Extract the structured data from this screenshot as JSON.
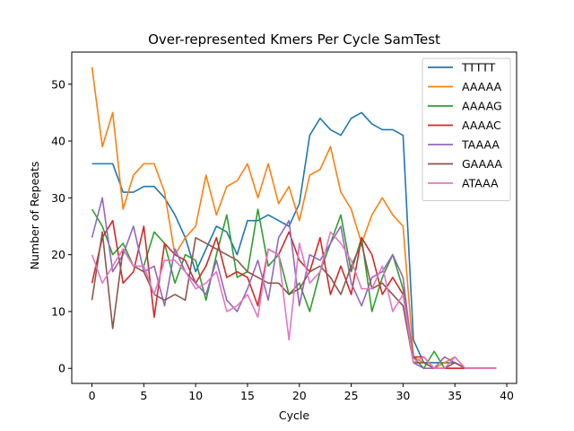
{
  "chart_data": {
    "type": "line",
    "title": "Over-represented Kmers Per Cycle SamTest",
    "xlabel": "Cycle",
    "ylabel": "Number of Repeats",
    "xlim": [
      -1.95,
      40.95
    ],
    "ylim": [
      -2.65,
      55.65
    ],
    "xticks": [
      0,
      5,
      10,
      15,
      20,
      25,
      30,
      35,
      40
    ],
    "yticks": [
      0,
      10,
      20,
      30,
      40,
      50
    ],
    "grid": false,
    "legend_position": "upper right",
    "x": [
      0,
      1,
      2,
      3,
      4,
      5,
      6,
      7,
      8,
      9,
      10,
      11,
      12,
      13,
      14,
      15,
      16,
      17,
      18,
      19,
      20,
      21,
      22,
      23,
      24,
      25,
      26,
      27,
      28,
      29,
      30,
      31,
      32,
      33,
      34,
      35,
      36,
      37,
      38,
      39
    ],
    "series": [
      {
        "name": "TTTTT",
        "color": "#1f77b4",
        "values": [
          36,
          36,
          36,
          31,
          31,
          32,
          32,
          30,
          27,
          23,
          17,
          21,
          25,
          24,
          20,
          26,
          26,
          27,
          26,
          25,
          29,
          41,
          44,
          42,
          41,
          44,
          45,
          43,
          42,
          42,
          41,
          5,
          1,
          1,
          1,
          1,
          0,
          0,
          0,
          0
        ]
      },
      {
        "name": "AAAAA",
        "color": "#ff7f0e",
        "values": [
          53,
          39,
          45,
          28,
          34,
          36,
          36,
          31,
          20,
          23,
          25,
          34,
          27,
          32,
          33,
          36,
          30,
          36,
          29,
          32,
          26,
          34,
          35,
          39,
          31,
          28,
          22,
          27,
          30,
          27,
          25,
          2,
          1,
          0,
          1,
          2,
          0,
          0,
          0,
          0
        ]
      },
      {
        "name": "AAAAG",
        "color": "#2ca02c",
        "values": [
          28,
          25,
          20,
          22,
          18,
          18,
          24,
          22,
          15,
          20,
          19,
          12,
          20,
          27,
          16,
          17,
          28,
          18,
          20,
          13,
          15,
          10,
          17,
          22,
          27,
          17,
          23,
          10,
          16,
          20,
          14,
          2,
          0,
          3,
          0,
          0,
          0,
          0,
          0,
          0
        ]
      },
      {
        "name": "AAAAC",
        "color": "#d62728",
        "values": [
          15,
          23,
          26,
          15,
          17,
          25,
          9,
          22,
          20,
          19,
          15,
          18,
          23,
          16,
          17,
          16,
          11,
          21,
          20,
          24,
          19,
          17,
          23,
          13,
          18,
          13,
          23,
          20,
          13,
          16,
          13,
          2,
          2,
          0,
          0,
          0,
          0,
          0,
          0,
          0
        ]
      },
      {
        "name": "TAAAA",
        "color": "#9467bd",
        "values": [
          23,
          30,
          17,
          20,
          25,
          17,
          18,
          11,
          21,
          17,
          15,
          13,
          19,
          12,
          10,
          14,
          19,
          12,
          23,
          26,
          11,
          20,
          19,
          22,
          25,
          15,
          11,
          16,
          17,
          20,
          16,
          1,
          0,
          0,
          2,
          1,
          0,
          0,
          0,
          0
        ]
      },
      {
        "name": "GAAAA",
        "color": "#8c564b",
        "values": [
          12,
          24,
          7,
          21,
          18,
          17,
          13,
          12,
          13,
          12,
          23,
          22,
          21,
          20,
          19,
          17,
          16,
          15,
          15,
          13,
          14,
          17,
          18,
          16,
          13,
          18,
          22,
          14,
          15,
          13,
          11,
          1,
          1,
          0,
          0,
          1,
          0,
          0,
          0,
          0
        ]
      },
      {
        "name": "ATAAA",
        "color": "#e377c2",
        "values": [
          20,
          15,
          18,
          21,
          18,
          18,
          13,
          19,
          19,
          17,
          14,
          15,
          17,
          10,
          11,
          13,
          9,
          21,
          20,
          5,
          22,
          15,
          17,
          24,
          22,
          19,
          14,
          14,
          18,
          10,
          13,
          1,
          2,
          0,
          0,
          2,
          0,
          0,
          0,
          0
        ]
      }
    ]
  }
}
